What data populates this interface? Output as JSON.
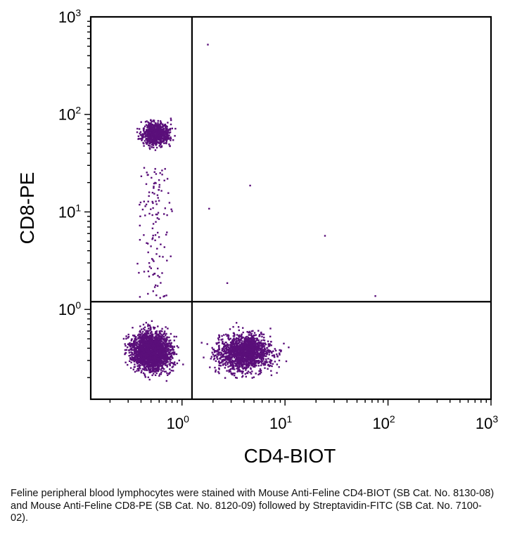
{
  "chart_data": {
    "type": "scatter",
    "subtype": "flow-cytometry-dot-plot",
    "xlabel": "CD4-BIOT",
    "ylabel": "CD8-PE",
    "x_scale": "log",
    "y_scale": "log",
    "xlim": [
      0.13,
      1000
    ],
    "ylim": [
      0.12,
      1000
    ],
    "x_ticks": [
      {
        "value": 1,
        "base": "10",
        "exp": "0"
      },
      {
        "value": 10,
        "base": "10",
        "exp": "1"
      },
      {
        "value": 100,
        "base": "10",
        "exp": "2"
      },
      {
        "value": 1000,
        "base": "10",
        "exp": "3"
      }
    ],
    "y_ticks": [
      {
        "value": 1,
        "base": "10",
        "exp": "0"
      },
      {
        "value": 10,
        "base": "10",
        "exp": "1"
      },
      {
        "value": 100,
        "base": "10",
        "exp": "2"
      },
      {
        "value": 1000,
        "base": "10",
        "exp": "3"
      }
    ],
    "quadrant_gates": {
      "x": 1.25,
      "y": 1.2
    },
    "point_color": "#5a0f7a",
    "grid": false,
    "populations": [
      {
        "label": "CD4-CD8- (lower-left)",
        "x_center": 0.5,
        "y_center": 0.38,
        "approx_events": 2200
      },
      {
        "label": "CD4+ (lower-right)",
        "x_center": 4.0,
        "y_center": 0.37,
        "approx_events": 1500
      },
      {
        "label": "CD8+ (upper-left)",
        "x_center": 0.55,
        "y_center": 65,
        "approx_events": 700
      },
      {
        "label": "sparse events",
        "points": [
          [
            1.75,
            530
          ],
          [
            4.5,
            19
          ],
          [
            1.8,
            11
          ],
          [
            24,
            5.8
          ],
          [
            74,
            1.4
          ],
          [
            2.7,
            1.9
          ]
        ]
      }
    ]
  },
  "caption": "Feline peripheral blood lymphocytes were stained with Mouse Anti-Feline CD4-BIOT (SB Cat. No. 8130-08) and Mouse Anti-Feline CD8-PE (SB Cat. No. 8120-09) followed by Streptavidin-FITC (SB Cat. No. 7100-02)."
}
